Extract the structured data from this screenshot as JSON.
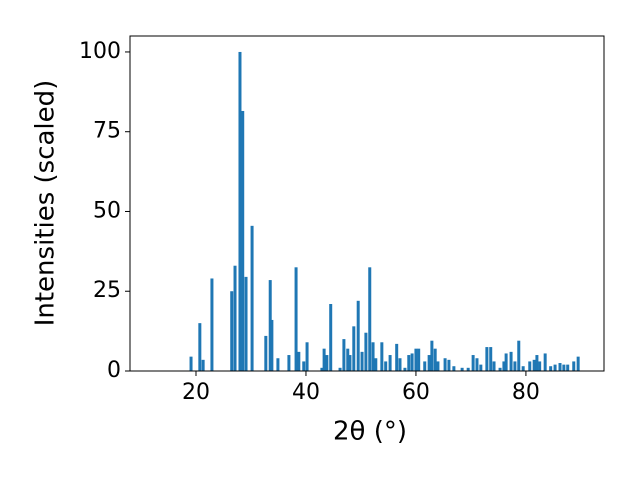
{
  "chart_data": {
    "type": "bar",
    "xlabel": "2θ (°)",
    "ylabel": "Intensities (scaled)",
    "color": "#1f77b4",
    "x": [
      19.1,
      20.7,
      21.3,
      22.9,
      26.5,
      27.1,
      28.0,
      28.5,
      29.1,
      30.2,
      32.7,
      33.5,
      33.8,
      34.9,
      36.9,
      38.2,
      38.7,
      39.6,
      40.2,
      42.9,
      43.3,
      43.8,
      44.5,
      46.2,
      46.9,
      47.6,
      48.0,
      48.7,
      49.5,
      50.2,
      50.9,
      51.6,
      52.2,
      52.7,
      53.8,
      54.5,
      55.3,
      56.5,
      57.1,
      58.0,
      58.7,
      59.3,
      60.0,
      60.5,
      61.6,
      62.4,
      62.9,
      63.5,
      64.0,
      65.3,
      66.0,
      66.9,
      68.4,
      69.5,
      70.4,
      71.1,
      71.8,
      72.9,
      73.6,
      74.2,
      75.3,
      76.0,
      76.4,
      77.3,
      78.0,
      78.7,
      79.5,
      80.7,
      81.5,
      82.0,
      82.5,
      83.5,
      84.5,
      85.3,
      86.2,
      86.9,
      87.6,
      88.7,
      89.5
    ],
    "values": [
      4.5,
      15,
      3.5,
      29,
      25,
      33,
      100,
      81.5,
      29.5,
      45.5,
      11,
      28.5,
      16,
      4,
      5,
      32.5,
      6,
      3,
      9,
      1,
      7,
      5,
      21,
      1,
      10,
      7,
      5,
      14,
      22,
      6,
      12,
      32.5,
      9,
      4,
      9,
      3,
      5,
      8.5,
      4,
      1,
      5,
      5.5,
      7,
      7,
      3,
      5,
      9.5,
      7,
      3,
      4,
      3.5,
      1.5,
      1,
      1,
      5,
      4,
      2,
      7.5,
      7.5,
      3,
      1,
      3,
      5.5,
      6,
      3,
      9.5,
      1.5,
      3,
      3.5,
      5,
      3,
      5.5,
      1.5,
      2,
      2.5,
      2,
      2,
      3,
      4.5
    ],
    "xlim": [
      8,
      94.2
    ],
    "ylim": [
      0,
      105
    ],
    "xticks": [
      20,
      40,
      60,
      80
    ],
    "yticks": [
      0,
      25,
      50,
      75,
      100
    ]
  }
}
